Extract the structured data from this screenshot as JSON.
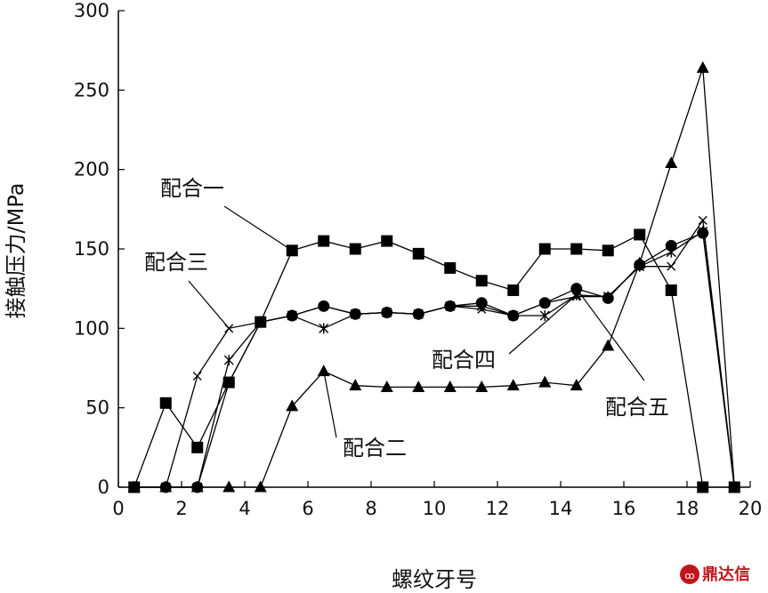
{
  "chart_data": {
    "type": "line",
    "xlabel": "螺纹牙号",
    "ylabel": "接触压力/MPa",
    "xlim": [
      0,
      20
    ],
    "ylim": [
      0,
      300
    ],
    "xticks": [
      0,
      2,
      4,
      6,
      8,
      10,
      12,
      14,
      16,
      18,
      20
    ],
    "yticks": [
      0,
      50,
      100,
      150,
      200,
      250,
      300
    ],
    "grid": false,
    "legend": "none (series labelled by annotations with leader lines)",
    "series": [
      {
        "name": "配合一",
        "marker": "square",
        "x": [
          0.5,
          1.5,
          2.5,
          3.5,
          4.5,
          5.5,
          6.5,
          7.5,
          8.5,
          9.5,
          10.5,
          11.5,
          12.5,
          13.5,
          14.5,
          15.5,
          16.5,
          17.5,
          18.5,
          19.5
        ],
        "y": [
          0,
          53,
          25,
          66,
          104,
          149,
          155,
          150,
          155,
          147,
          138,
          130,
          124,
          150,
          150,
          149,
          159,
          124,
          0,
          0
        ]
      },
      {
        "name": "配合二",
        "marker": "triangle",
        "x": [
          0.5,
          1.5,
          2.5,
          3.5,
          4.5,
          5.5,
          6.5,
          7.5,
          8.5,
          9.5,
          10.5,
          11.5,
          12.5,
          13.5,
          14.5,
          15.5,
          16.5,
          17.5,
          18.5,
          19.5
        ],
        "y": [
          0,
          0,
          0,
          0,
          0,
          51,
          73,
          64,
          63,
          63,
          63,
          63,
          64,
          66,
          64,
          89,
          141,
          204,
          264,
          0
        ]
      },
      {
        "name": "配合三",
        "marker": "x",
        "x": [
          0.5,
          1.5,
          2.5,
          3.5,
          4.5,
          5.5,
          6.5,
          7.5,
          8.5,
          9.5,
          10.5,
          11.5,
          12.5,
          13.5,
          14.5,
          15.5,
          16.5,
          17.5,
          18.5,
          19.5
        ],
        "y": [
          0,
          0,
          70,
          100,
          104,
          108,
          114,
          109,
          110,
          109,
          114,
          112,
          108,
          116,
          120,
          120,
          139,
          139,
          168,
          0
        ]
      },
      {
        "name": "配合四",
        "marker": "asterisk",
        "x": [
          0.5,
          1.5,
          2.5,
          3.5,
          4.5,
          5.5,
          6.5,
          7.5,
          8.5,
          9.5,
          10.5,
          11.5,
          12.5,
          13.5,
          14.5,
          15.5,
          16.5,
          17.5,
          18.5,
          19.5
        ],
        "y": [
          0,
          0,
          0,
          80,
          104,
          108,
          100,
          109,
          110,
          109,
          114,
          114,
          108,
          108,
          121,
          120,
          139,
          148,
          161,
          0
        ]
      },
      {
        "name": "配合五",
        "marker": "circle",
        "x": [
          0.5,
          1.5,
          2.5,
          3.5,
          4.5,
          5.5,
          6.5,
          7.5,
          8.5,
          9.5,
          10.5,
          11.5,
          12.5,
          13.5,
          14.5,
          15.5,
          16.5,
          17.5,
          18.5,
          19.5
        ],
        "y": [
          0,
          0,
          0,
          66,
          104,
          108,
          114,
          109,
          110,
          109,
          114,
          116,
          108,
          116,
          125,
          119,
          140,
          152,
          160,
          0
        ]
      }
    ],
    "annotations": [
      {
        "text": "配合一",
        "target_series": "配合一"
      },
      {
        "text": "配合三",
        "target_series": "配合三"
      },
      {
        "text": "配合四",
        "target_series": "配合四"
      },
      {
        "text": "配合二",
        "target_series": "配合二"
      },
      {
        "text": "配合五",
        "target_series": "配合五"
      }
    ]
  },
  "watermark": {
    "text": "鼎达信",
    "color": "#c0161b"
  }
}
